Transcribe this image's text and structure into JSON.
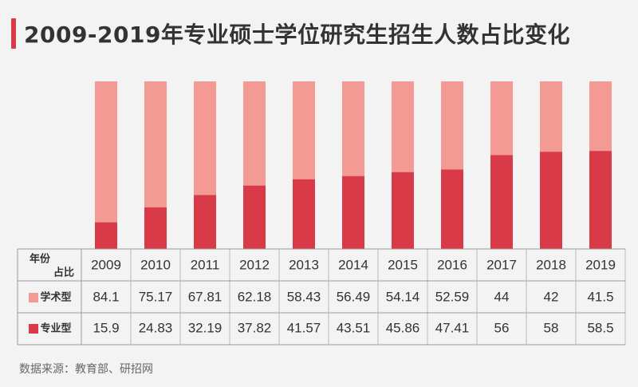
{
  "title": "2009-2019年专业硕士学位研究生招生人数占比变化",
  "source": "数据来源：教育部、研招网",
  "colors": {
    "academic": "#f39a94",
    "professional": "#d93a48",
    "accent": "#d93a48"
  },
  "table": {
    "header_top": "年份",
    "header_bottom": "占比"
  },
  "chart_data": {
    "type": "bar",
    "stacked": true,
    "categories": [
      "2009",
      "2010",
      "2011",
      "2012",
      "2013",
      "2014",
      "2015",
      "2016",
      "2017",
      "2018",
      "2019"
    ],
    "series": [
      {
        "name": "学术型",
        "color": "#f39a94",
        "values": [
          84.1,
          75.17,
          67.81,
          62.18,
          58.43,
          56.49,
          54.14,
          52.59,
          44,
          42,
          41.5
        ]
      },
      {
        "name": "专业型",
        "color": "#d93a48",
        "values": [
          15.9,
          24.83,
          32.19,
          37.82,
          41.57,
          43.51,
          45.86,
          47.41,
          56,
          58,
          58.5
        ]
      }
    ],
    "ylim": [
      0,
      100
    ],
    "legend": "table-rows"
  }
}
